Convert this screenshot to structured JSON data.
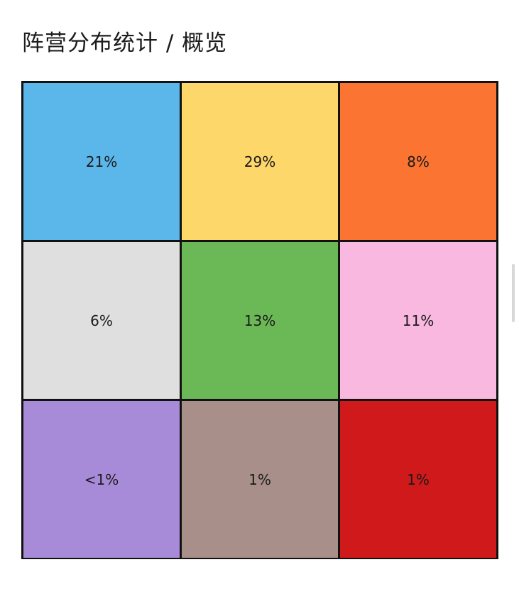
{
  "title": "阵营分布统计 / 概览",
  "cells": [
    {
      "label": "21%",
      "color": "#5bb6ea"
    },
    {
      "label": "29%",
      "color": "#fed76a"
    },
    {
      "label": "8%",
      "color": "#fc7432"
    },
    {
      "label": "6%",
      "color": "#dfdfdf"
    },
    {
      "label": "13%",
      "color": "#6bb956"
    },
    {
      "label": "11%",
      "color": "#f9b8df"
    },
    {
      "label": "<1%",
      "color": "#a88bd8"
    },
    {
      "label": "1%",
      "color": "#a98f8a"
    },
    {
      "label": "1%",
      "color": "#d0191a"
    }
  ]
}
